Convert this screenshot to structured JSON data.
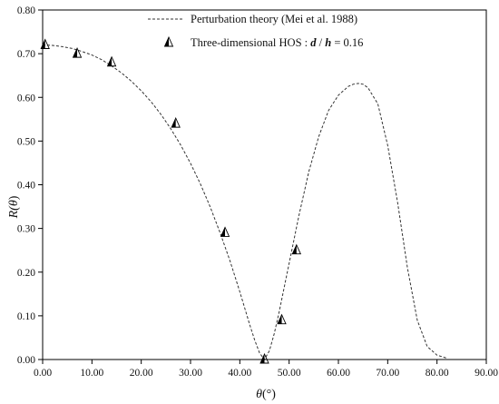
{
  "chart_data": {
    "type": "line",
    "title": "",
    "xlabel": {
      "symbol": "θ",
      "unit": "(°)"
    },
    "ylabel": {
      "prefix": "R(",
      "symbol": "θ",
      "suffix": ")"
    },
    "xlim": [
      0,
      90
    ],
    "ylim": [
      0,
      0.8
    ],
    "xticks": [
      "0.00",
      "10.00",
      "20.00",
      "30.00",
      "40.00",
      "50.00",
      "60.00",
      "70.00",
      "80.00",
      "90.00"
    ],
    "yticks": [
      "0.00",
      "0.10",
      "0.20",
      "0.30",
      "0.40",
      "0.50",
      "0.60",
      "0.70",
      "0.80"
    ],
    "grid": false,
    "legend_position": "top-right",
    "series": [
      {
        "name": "Perturbation theory (Mei et al. 1988)",
        "style": "dashed-line",
        "x": [
          0,
          2,
          4,
          6,
          8,
          10,
          12,
          14,
          16,
          18,
          20,
          22,
          24,
          26,
          28,
          30,
          32,
          34,
          36,
          38,
          40,
          42,
          43,
          44,
          45,
          46,
          47,
          48,
          49,
          50,
          52,
          54,
          56,
          58,
          60,
          62,
          63,
          64,
          65,
          66,
          68,
          70,
          72,
          74,
          76,
          78,
          80,
          82
        ],
        "y": [
          0.72,
          0.719,
          0.716,
          0.712,
          0.705,
          0.697,
          0.686,
          0.672,
          0.656,
          0.637,
          0.615,
          0.59,
          0.561,
          0.528,
          0.491,
          0.449,
          0.402,
          0.349,
          0.29,
          0.226,
          0.155,
          0.08,
          0.045,
          0.015,
          0.0,
          0.02,
          0.06,
          0.11,
          0.165,
          0.22,
          0.33,
          0.43,
          0.51,
          0.57,
          0.605,
          0.625,
          0.63,
          0.632,
          0.63,
          0.622,
          0.585,
          0.49,
          0.36,
          0.21,
          0.09,
          0.03,
          0.01,
          0.003
        ]
      },
      {
        "name": "Three-dimensional HOS : ",
        "name_italic": "d",
        "name_sep": " / ",
        "name_italic2": "h",
        "name_value": " = 0.16",
        "style": "half-filled-triangle",
        "x": [
          0.5,
          7,
          14,
          27,
          37,
          45,
          48.5,
          51.5
        ],
        "y": [
          0.72,
          0.7,
          0.68,
          0.54,
          0.29,
          0.0,
          0.09,
          0.25
        ]
      }
    ]
  }
}
